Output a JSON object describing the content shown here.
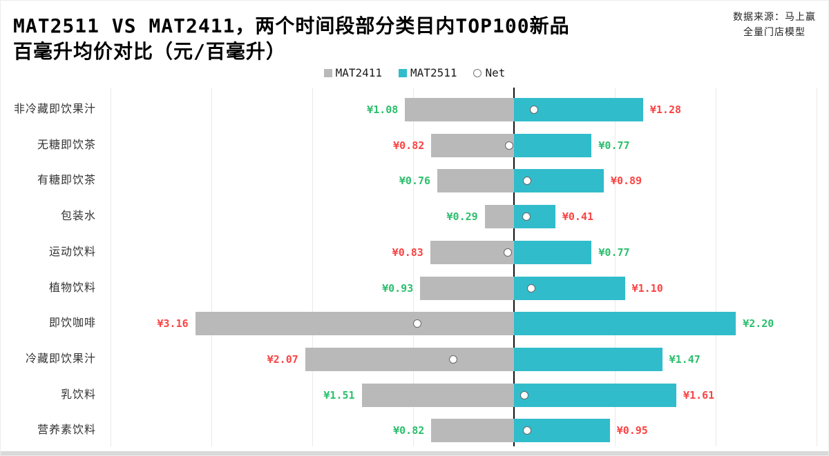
{
  "title": {
    "line1": "MAT2511 VS MAT2411，两个时间段部分类目内TOP100新品",
    "line2": "百毫升均价对比（元/百毫升）"
  },
  "source": {
    "line1": "数据来源：马上赢",
    "line2": "全量门店模型"
  },
  "legend": {
    "items": [
      {
        "label": "MAT2411",
        "swatch": "square",
        "color": "#b9b9b9"
      },
      {
        "label": "MAT2511",
        "swatch": "square",
        "color": "#31bccb"
      },
      {
        "label": "Net",
        "swatch": "circle",
        "color": "#ffffff"
      }
    ],
    "position": "top-center"
  },
  "colors": {
    "mat2411_bar": "#b9b9b9",
    "mat2511_bar": "#31bccb",
    "higher_value_text": "#fa4343",
    "lower_value_text": "#2bbe6c",
    "axis_line": "#111111",
    "gridline": "#e9e9e9",
    "category_text": "#333333"
  },
  "chart_data": {
    "type": "bar",
    "subtype": "diverging-horizontal",
    "title": "MAT2511 VS MAT2411，两个时间段部分类目内TOP100新品百毫升均价对比（元/百毫升）",
    "categories": [
      "非冷藏即饮果汁",
      "无糖即饮茶",
      "有糖即饮茶",
      "包装水",
      "运动饮料",
      "植物饮料",
      "即饮咖啡",
      "冷藏即饮果汁",
      "乳饮料",
      "营养素饮料"
    ],
    "series": [
      {
        "name": "MAT2411",
        "side": "left",
        "values": [
          1.08,
          0.82,
          0.76,
          0.29,
          0.83,
          0.93,
          3.16,
          2.07,
          1.51,
          0.82
        ]
      },
      {
        "name": "MAT2511",
        "side": "right",
        "values": [
          1.28,
          0.77,
          0.89,
          0.41,
          0.77,
          1.1,
          2.2,
          1.47,
          1.61,
          0.95
        ]
      },
      {
        "name": "Net",
        "marker": "circle",
        "values": [
          0.2,
          -0.05,
          0.13,
          0.12,
          -0.06,
          0.17,
          -0.96,
          -0.6,
          0.1,
          0.13
        ]
      }
    ],
    "value_prefix": "¥",
    "value_decimals": 2,
    "value_label_rule": "higher of the two values is red, lower is green",
    "axis": {
      "center_value": 0,
      "gridline_interval": 1,
      "left_extent": 4,
      "right_extent": 3
    },
    "grid": true,
    "legend_position": "top-center"
  }
}
